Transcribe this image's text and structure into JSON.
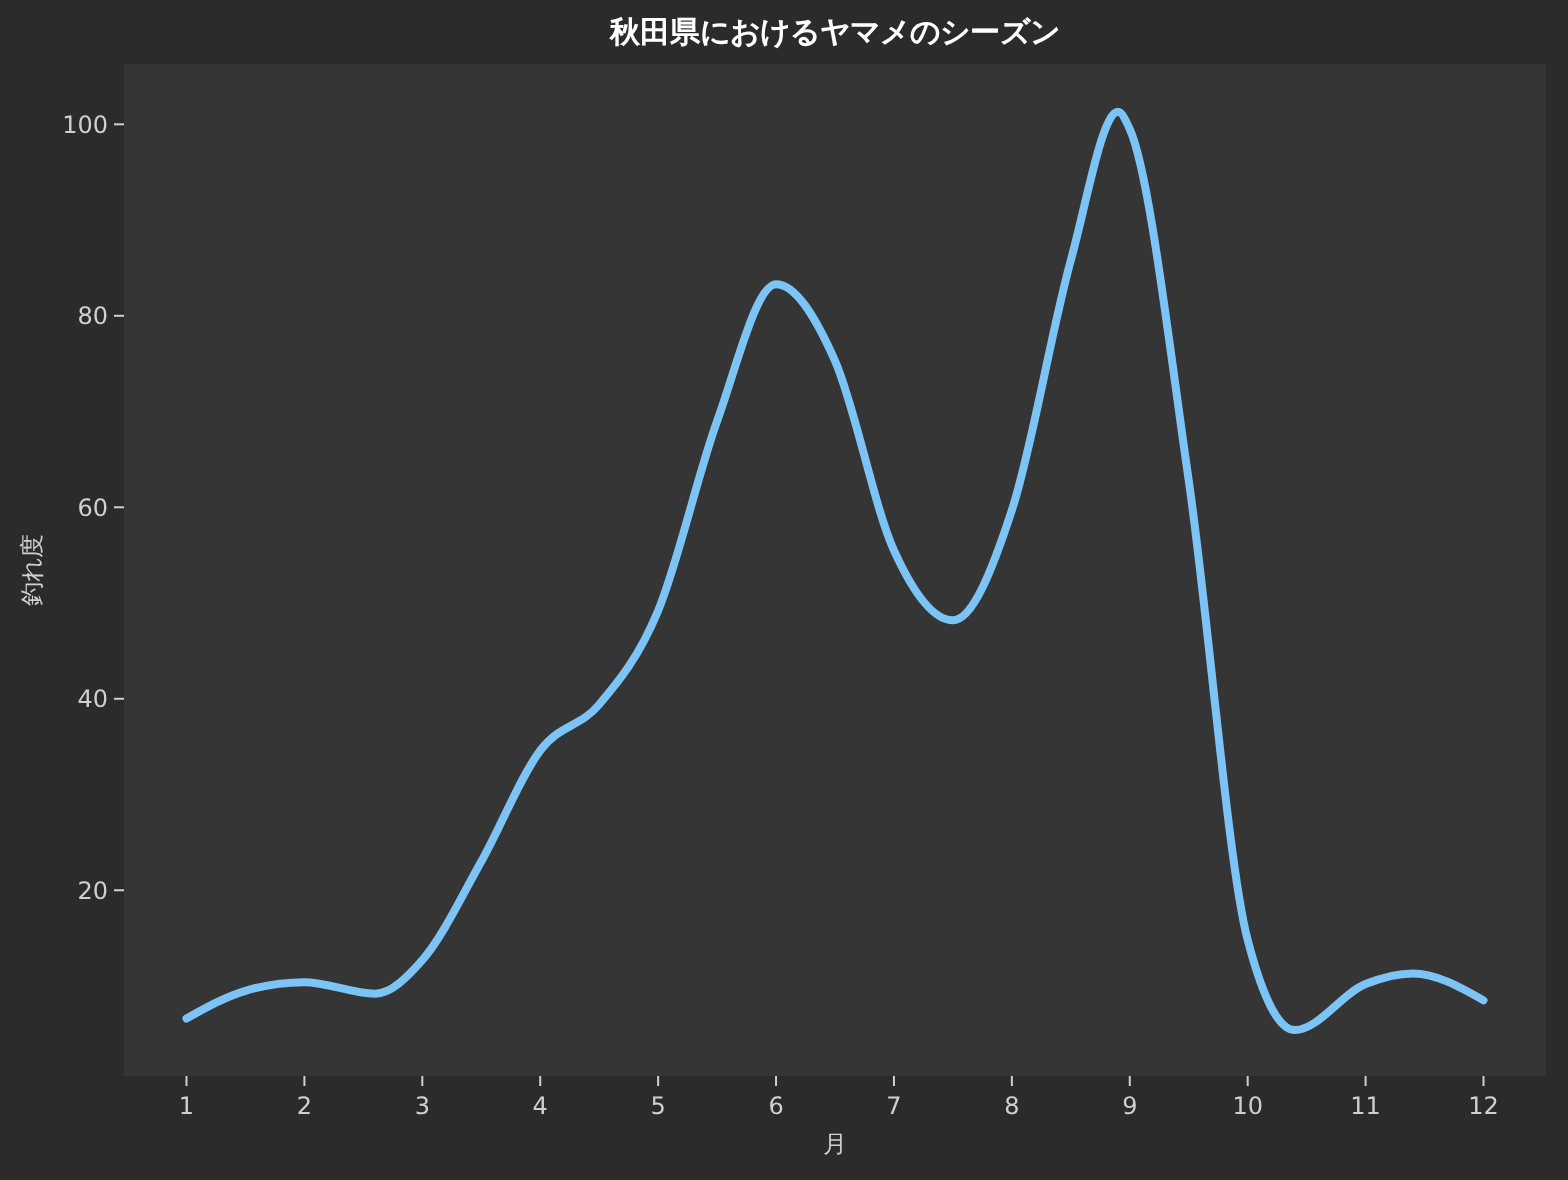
{
  "chart_data": {
    "type": "line",
    "title": "秋田県におけるヤマメのシーズン",
    "xlabel": "月",
    "ylabel": "釣れ度",
    "x": [
      1,
      1.5,
      2,
      2.6,
      3,
      3.5,
      4,
      4.5,
      5,
      5.5,
      6,
      6.5,
      7,
      7.5,
      8,
      8.5,
      8.9,
      9,
      9.5,
      10,
      10.4,
      11,
      11.4,
      12
    ],
    "series": [
      {
        "color": "#7cc4f5",
        "values": [
          6.6,
          9.5,
          10.4,
          9.2,
          12.7,
          23,
          34.6,
          39.4,
          49.2,
          69,
          83.3,
          75.3,
          55.5,
          48.2,
          59.7,
          85.8,
          101.3,
          99.5,
          62.8,
          14.8,
          5.4,
          10.2,
          11.3,
          8.5
        ]
      }
    ],
    "xlim": [
      0.47,
      12.53
    ],
    "ylim": [
      0.6,
      106.3
    ],
    "xticks": [
      1,
      2,
      3,
      4,
      5,
      6,
      7,
      8,
      9,
      10,
      11,
      12
    ],
    "yticks": [
      20,
      40,
      60,
      80,
      100
    ],
    "marker": "none",
    "line_style": "solid"
  }
}
